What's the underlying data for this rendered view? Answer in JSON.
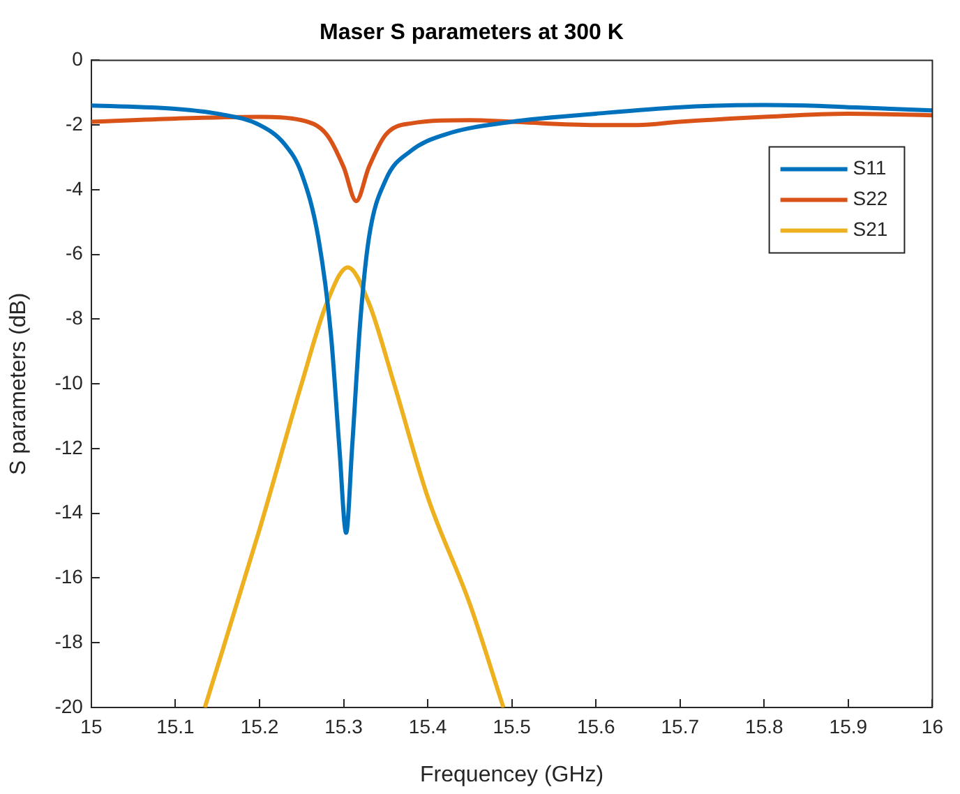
{
  "chart_data": {
    "type": "line",
    "title": "Maser S parameters at 300 K",
    "xlabel": "Frequencey (GHz)",
    "ylabel": "S parameters (dB)",
    "xlim": [
      15,
      16
    ],
    "xticks": [
      15,
      15.1,
      15.2,
      15.3,
      15.4,
      15.5,
      15.6,
      15.7,
      15.8,
      15.9,
      16
    ],
    "ylim": [
      -20,
      0
    ],
    "yticks": [
      -20,
      -18,
      -16,
      -14,
      -12,
      -10,
      -8,
      -6,
      -4,
      -2,
      0
    ],
    "grid": false,
    "legend": "top right",
    "marker": "none",
    "line_style": "solid",
    "series": [
      {
        "name": "S11",
        "color": "#0072bd",
        "x": [
          15,
          15.1,
          15.15,
          15.2,
          15.23,
          15.25,
          15.27,
          15.285,
          15.295,
          15.303,
          15.31,
          15.32,
          15.33,
          15.35,
          15.38,
          15.42,
          15.5,
          15.6,
          15.7,
          15.8,
          15.85,
          15.9,
          16
        ],
        "values": [
          -1.4,
          -1.5,
          -1.65,
          -2.0,
          -2.6,
          -3.5,
          -5.5,
          -8.5,
          -12,
          -14.6,
          -12,
          -8,
          -5.5,
          -3.7,
          -2.8,
          -2.3,
          -1.9,
          -1.65,
          -1.45,
          -1.38,
          -1.4,
          -1.45,
          -1.55
        ]
      },
      {
        "name": "S22",
        "color": "#d95319",
        "x": [
          15,
          15.1,
          15.2,
          15.25,
          15.28,
          15.3,
          15.315,
          15.33,
          15.35,
          15.38,
          15.45,
          15.5,
          15.6,
          15.65,
          15.7,
          15.8,
          15.9,
          16
        ],
        "values": [
          -1.9,
          -1.8,
          -1.75,
          -1.85,
          -2.3,
          -3.3,
          -4.35,
          -3.3,
          -2.3,
          -1.95,
          -1.85,
          -1.9,
          -2.0,
          -2.0,
          -1.9,
          -1.75,
          -1.65,
          -1.7
        ]
      },
      {
        "name": "S21",
        "color": "#edb120",
        "x": [
          15.135,
          15.2,
          15.25,
          15.28,
          15.305,
          15.33,
          15.36,
          15.4,
          15.45,
          15.49
        ],
        "values": [
          -20,
          -14.5,
          -10,
          -7.5,
          -6.4,
          -7.5,
          -10,
          -13.5,
          -16.8,
          -20
        ]
      }
    ]
  }
}
